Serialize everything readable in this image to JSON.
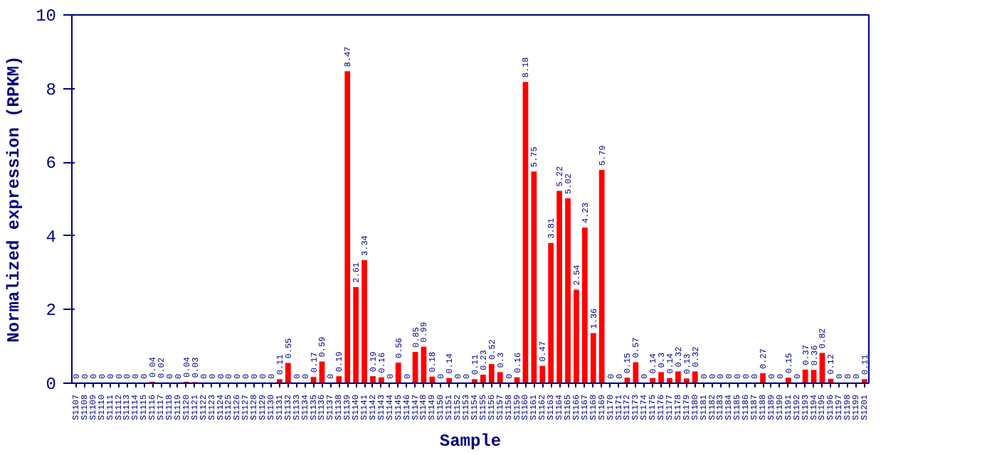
{
  "chart_data": {
    "type": "bar",
    "xlabel": "Sample",
    "ylabel": "Normalized expression (RPKM)",
    "categories": [
      "S1107",
      "S1108",
      "S1109",
      "S1110",
      "S1111",
      "S1112",
      "S1113",
      "S1114",
      "S1115",
      "S1116",
      "S1117",
      "S1118",
      "S1119",
      "S1120",
      "S1121",
      "S1122",
      "S1123",
      "S1124",
      "S1125",
      "S1126",
      "S1127",
      "S1128",
      "S1129",
      "S1130",
      "S1131",
      "S1132",
      "S1133",
      "S1134",
      "S1135",
      "S1136",
      "S1137",
      "S1138",
      "S1139",
      "S1140",
      "S1141",
      "S1142",
      "S1143",
      "S1144",
      "S1145",
      "S1146",
      "S1147",
      "S1148",
      "S1149",
      "S1150",
      "S1151",
      "S1152",
      "S1153",
      "S1154",
      "S1155",
      "S1156",
      "S1157",
      "S1158",
      "S1159",
      "S1160",
      "S1161",
      "S1162",
      "S1163",
      "S1164",
      "S1165",
      "S1166",
      "S1167",
      "S1168",
      "S1169",
      "S1170",
      "S1171",
      "S1172",
      "S1173",
      "S1174",
      "S1175",
      "S1176",
      "S1177",
      "S1178",
      "S1179",
      "S1180",
      "S1181",
      "S1182",
      "S1183",
      "S1184",
      "S1185",
      "S1186",
      "S1187",
      "S1188",
      "S1189",
      "S1190",
      "S1191",
      "S1192",
      "S1193",
      "S1194",
      "S1195",
      "S1196",
      "S1197",
      "S1198",
      "S1199",
      "S1201"
    ],
    "values": [
      0,
      0,
      0,
      0,
      0,
      0,
      0,
      0,
      0,
      0.04,
      0.02,
      0,
      0,
      0.04,
      0.03,
      0,
      0,
      0,
      0,
      0,
      0,
      0,
      0,
      0,
      0.11,
      0.55,
      0,
      0,
      0.17,
      0.59,
      0,
      0.19,
      8.47,
      2.61,
      3.34,
      0.19,
      0.16,
      0,
      0.56,
      0,
      0.85,
      0.99,
      0.18,
      0,
      0.14,
      0,
      0,
      0.11,
      0.23,
      0.52,
      0.3,
      0,
      0.16,
      8.18,
      5.75,
      0.47,
      3.81,
      5.22,
      5.02,
      2.54,
      4.23,
      1.36,
      5.79,
      0,
      0,
      0.15,
      0.57,
      0,
      0.14,
      0.3,
      0.14,
      0.32,
      0.13,
      0.32,
      0,
      0,
      0,
      0,
      0,
      0,
      0,
      0.27,
      0,
      0,
      0.15,
      0,
      0.37,
      0.36,
      0.82,
      0.12,
      0,
      0,
      0,
      0.11
    ],
    "color": "#ff0000",
    "ylim": [
      0,
      10
    ],
    "yticks": [
      0,
      2,
      4,
      6,
      8,
      10
    ],
    "grid": false,
    "data_labels": true
  }
}
